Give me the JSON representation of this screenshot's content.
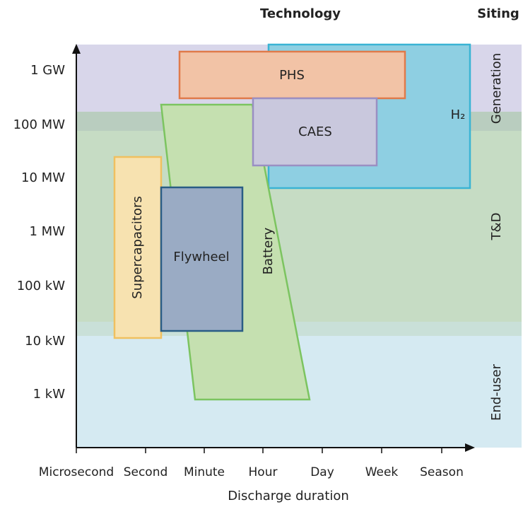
{
  "header": {
    "technology": "Technology",
    "siting": "Siting"
  },
  "y_axis": {
    "labels": [
      "1 GW",
      "100 MW",
      "10 MW",
      "1 MW",
      "100 kW",
      "10 kW",
      "1 kW"
    ]
  },
  "x_axis": {
    "labels": [
      "Microsecond",
      "Second",
      "Minute",
      "Hour",
      "Day",
      "Week",
      "Season"
    ],
    "title": "Discharge duration"
  },
  "siting": [
    "Generation",
    "T&D",
    "End-user"
  ],
  "technologies": {
    "h2": "H₂",
    "phs": "PHS",
    "caes": "CAES",
    "battery": "Battery",
    "supercapacitors": "Supercapacitors",
    "flywheel": "Flywheel"
  }
}
